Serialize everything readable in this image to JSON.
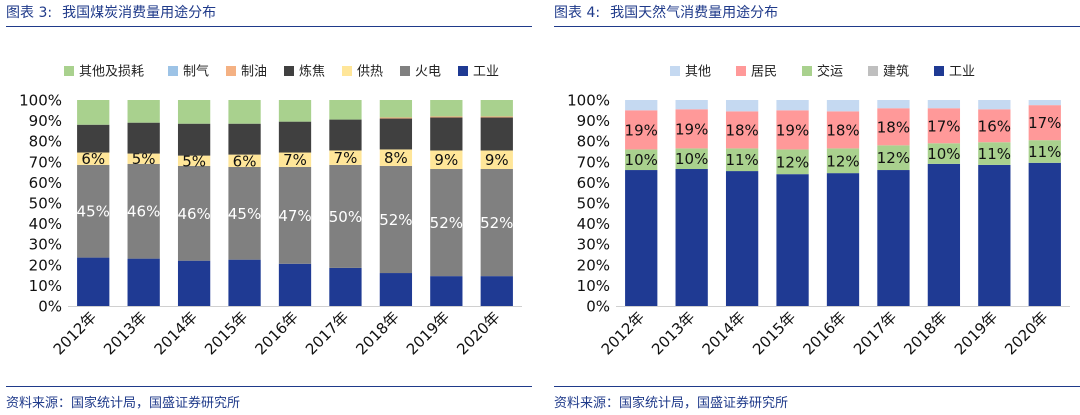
{
  "source_note": "资料来源：国家统计局，国盛证券研究所",
  "chart_data": [
    {
      "type": "bar",
      "stacked": true,
      "figure_label": "图表 3:",
      "title": "我国煤炭消费量用途分布",
      "categories": [
        "2012年",
        "2013年",
        "2014年",
        "2015年",
        "2016年",
        "2017年",
        "2018年",
        "2019年",
        "2020年"
      ],
      "ylim": [
        0,
        100
      ],
      "yticks": [
        "0%",
        "10%",
        "20%",
        "30%",
        "40%",
        "50%",
        "60%",
        "70%",
        "80%",
        "90%",
        "100%"
      ],
      "legend_position": "top",
      "series": [
        {
          "name": "工业",
          "color": "#1f3a93",
          "values": [
            23.5,
            23,
            22,
            22.5,
            20.5,
            18.5,
            16,
            14.5,
            14.5
          ]
        },
        {
          "name": "火电",
          "color": "#808080",
          "values": [
            45,
            46,
            46,
            45,
            47,
            50,
            52,
            52,
            52
          ],
          "labels": [
            "45%",
            "46%",
            "46%",
            "45%",
            "47%",
            "50%",
            "52%",
            "52%",
            "52%"
          ]
        },
        {
          "name": "供热",
          "color": "#ffe699",
          "values": [
            6,
            5,
            5,
            6,
            7,
            7,
            8,
            9,
            9
          ],
          "labels": [
            "6%",
            "5%",
            "5%",
            "6%",
            "7%",
            "7%",
            "8%",
            "9%",
            "9%"
          ]
        },
        {
          "name": "炼焦",
          "color": "#404040",
          "values": [
            13.5,
            15,
            15.5,
            15,
            15,
            15,
            15,
            16,
            16
          ]
        },
        {
          "name": "制油",
          "color": "#f4b183",
          "values": [
            0,
            0,
            0,
            0,
            0,
            0,
            0.5,
            0.5,
            0.5
          ]
        },
        {
          "name": "制气",
          "color": "#9dc3e6",
          "values": [
            0,
            0,
            0,
            0,
            0,
            0,
            0,
            0,
            0
          ]
        },
        {
          "name": "其他及损耗",
          "color": "#a9d18e",
          "values": [
            12,
            11,
            11.5,
            11.5,
            10.5,
            9.5,
            8.5,
            8,
            8
          ]
        }
      ]
    },
    {
      "type": "bar",
      "stacked": true,
      "figure_label": "图表 4:",
      "title": "我国天然气消费量用途分布",
      "categories": [
        "2012年",
        "2013年",
        "2014年",
        "2015年",
        "2016年",
        "2017年",
        "2018年",
        "2019年",
        "2020年"
      ],
      "ylim": [
        0,
        100
      ],
      "yticks": [
        "0%",
        "10%",
        "20%",
        "30%",
        "40%",
        "50%",
        "60%",
        "70%",
        "80%",
        "90%",
        "100%"
      ],
      "legend_position": "top",
      "series": [
        {
          "name": "工业",
          "color": "#1f3a93",
          "values": [
            66,
            66.5,
            65.5,
            64,
            64.5,
            66,
            69,
            68.5,
            69.5
          ]
        },
        {
          "name": "建筑",
          "color": "#bfbfbf",
          "values": [
            0,
            0,
            0,
            0,
            0,
            0,
            0,
            0,
            0
          ]
        },
        {
          "name": "交运",
          "color": "#a9d18e",
          "values": [
            10,
            10,
            11,
            12,
            12,
            12,
            10,
            11,
            11
          ],
          "labels": [
            "10%",
            "10%",
            "11%",
            "12%",
            "12%",
            "12%",
            "10%",
            "11%",
            "11%"
          ]
        },
        {
          "name": "居民",
          "color": "#ff9999",
          "values": [
            19,
            19,
            18,
            19,
            18,
            18,
            17,
            16,
            17
          ],
          "labels": [
            "19%",
            "19%",
            "18%",
            "19%",
            "18%",
            "18%",
            "17%",
            "16%",
            "17%"
          ]
        },
        {
          "name": "其他",
          "color": "#c5d9f1",
          "values": [
            5,
            4.5,
            5.5,
            5,
            5.5,
            4,
            4,
            4.5,
            2.5
          ]
        }
      ]
    }
  ]
}
